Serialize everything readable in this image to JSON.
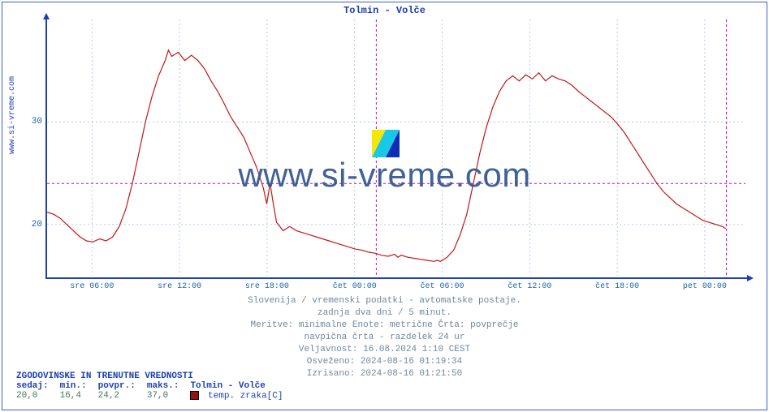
{
  "title": "Tolmin - Volče",
  "ylabel": "www.si-vreme.com",
  "watermark_text": "www.si-vreme.com",
  "chart": {
    "type": "line",
    "series_color": "#c01818",
    "line_width": 1.2,
    "background_color": "#ffffff",
    "axis_color": "#1d3fb3",
    "grid_dash": "2,3",
    "yticks": [
      {
        "v": 20,
        "label": "20"
      },
      {
        "v": 30,
        "label": "30"
      }
    ],
    "ylim": [
      15,
      40
    ],
    "hline": {
      "v": 24,
      "color": "#c800c8",
      "dash": "3,3"
    },
    "vlines": [
      {
        "x": 100.4,
        "color": "#c800c8",
        "dash": "3,3"
      },
      {
        "x": 207.2,
        "color": "#c800c8",
        "dash": "3,3"
      }
    ],
    "xticks": [
      {
        "x": 13.7,
        "label": "sre 06:00"
      },
      {
        "x": 40.4,
        "label": "sre 12:00"
      },
      {
        "x": 67.1,
        "label": "sre 18:00"
      },
      {
        "x": 93.8,
        "label": "čet 00:00"
      },
      {
        "x": 120.5,
        "label": "čet 06:00"
      },
      {
        "x": 147.2,
        "label": "čet 12:00"
      },
      {
        "x": 173.9,
        "label": "čet 18:00"
      },
      {
        "x": 200.6,
        "label": "pet 00:00"
      }
    ],
    "x_domain": [
      0,
      213
    ],
    "data": [
      [
        0,
        21.2
      ],
      [
        2,
        21.0
      ],
      [
        4,
        20.6
      ],
      [
        6,
        20.0
      ],
      [
        8,
        19.4
      ],
      [
        10,
        18.8
      ],
      [
        12,
        18.4
      ],
      [
        14,
        18.3
      ],
      [
        16,
        18.6
      ],
      [
        18,
        18.4
      ],
      [
        20,
        18.8
      ],
      [
        22,
        19.8
      ],
      [
        24,
        21.5
      ],
      [
        26,
        24.0
      ],
      [
        28,
        27.0
      ],
      [
        30,
        30.0
      ],
      [
        32,
        32.5
      ],
      [
        34,
        34.5
      ],
      [
        36,
        36.0
      ],
      [
        37,
        37.0
      ],
      [
        38,
        36.4
      ],
      [
        40,
        36.8
      ],
      [
        42,
        36.0
      ],
      [
        44,
        36.5
      ],
      [
        46,
        36.0
      ],
      [
        48,
        35.2
      ],
      [
        50,
        34.0
      ],
      [
        52,
        33.0
      ],
      [
        54,
        31.8
      ],
      [
        56,
        30.5
      ],
      [
        58,
        29.5
      ],
      [
        60,
        28.5
      ],
      [
        62,
        27.0
      ],
      [
        64,
        25.5
      ],
      [
        66,
        23.5
      ],
      [
        67,
        22.0
      ],
      [
        68,
        24.0
      ],
      [
        69,
        22.0
      ],
      [
        70,
        20.2
      ],
      [
        72,
        19.4
      ],
      [
        74,
        19.8
      ],
      [
        76,
        19.4
      ],
      [
        78,
        19.2
      ],
      [
        80,
        19.0
      ],
      [
        82,
        18.8
      ],
      [
        84,
        18.6
      ],
      [
        86,
        18.4
      ],
      [
        88,
        18.2
      ],
      [
        90,
        18.0
      ],
      [
        92,
        17.8
      ],
      [
        94,
        17.6
      ],
      [
        96,
        17.5
      ],
      [
        98,
        17.3
      ],
      [
        100,
        17.2
      ],
      [
        102,
        17.0
      ],
      [
        104,
        16.9
      ],
      [
        106,
        17.1
      ],
      [
        107,
        16.8
      ],
      [
        108,
        17.0
      ],
      [
        110,
        16.8
      ],
      [
        112,
        16.7
      ],
      [
        114,
        16.6
      ],
      [
        116,
        16.5
      ],
      [
        118,
        16.4
      ],
      [
        119,
        16.5
      ],
      [
        120,
        16.4
      ],
      [
        122,
        16.8
      ],
      [
        124,
        17.5
      ],
      [
        126,
        19.0
      ],
      [
        128,
        21.0
      ],
      [
        130,
        24.0
      ],
      [
        132,
        27.0
      ],
      [
        134,
        29.5
      ],
      [
        136,
        31.5
      ],
      [
        138,
        33.0
      ],
      [
        140,
        34.0
      ],
      [
        142,
        34.5
      ],
      [
        144,
        34.0
      ],
      [
        146,
        34.6
      ],
      [
        148,
        34.2
      ],
      [
        150,
        34.8
      ],
      [
        152,
        34.0
      ],
      [
        154,
        34.5
      ],
      [
        156,
        34.2
      ],
      [
        158,
        34.0
      ],
      [
        160,
        33.6
      ],
      [
        162,
        33.0
      ],
      [
        164,
        32.5
      ],
      [
        166,
        32.0
      ],
      [
        168,
        31.5
      ],
      [
        170,
        31.0
      ],
      [
        172,
        30.5
      ],
      [
        174,
        29.8
      ],
      [
        176,
        29.0
      ],
      [
        178,
        28.0
      ],
      [
        180,
        27.0
      ],
      [
        182,
        26.0
      ],
      [
        184,
        25.0
      ],
      [
        186,
        24.0
      ],
      [
        188,
        23.2
      ],
      [
        190,
        22.6
      ],
      [
        192,
        22.0
      ],
      [
        194,
        21.6
      ],
      [
        196,
        21.2
      ],
      [
        198,
        20.8
      ],
      [
        200,
        20.4
      ],
      [
        202,
        20.2
      ],
      [
        204,
        20.0
      ],
      [
        206,
        19.8
      ],
      [
        207,
        19.6
      ]
    ]
  },
  "footer_lines": [
    "Slovenija / vremenski podatki - avtomatske postaje.",
    "zadnja dva dni / 5 minut.",
    "Meritve: minimalne  Enote: metrične  Črta: povprečje",
    "navpična črta - razdelek 24 ur",
    "Veljavnost: 16.08.2024 1:10 CEST",
    "Osveženo: 2024-08-16 01:19:34",
    "Izrisano: 2024-08-16 01:21:50"
  ],
  "legend": {
    "header": "ZGODOVINSKE IN TRENUTNE VREDNOSTI",
    "cols": [
      "sedaj:",
      "min.:",
      "povpr.:",
      "maks.:"
    ],
    "series_label": "Tolmin - Volče",
    "vals": [
      "20,0",
      "16,4",
      "24,2",
      "37,0"
    ],
    "swatch_color": "#9c0f0f",
    "measure_label": "temp. zraka[C]"
  },
  "icon": {
    "c1": "#f7e600",
    "c2": "#19c7e6",
    "c3": "#0a2fb5"
  }
}
